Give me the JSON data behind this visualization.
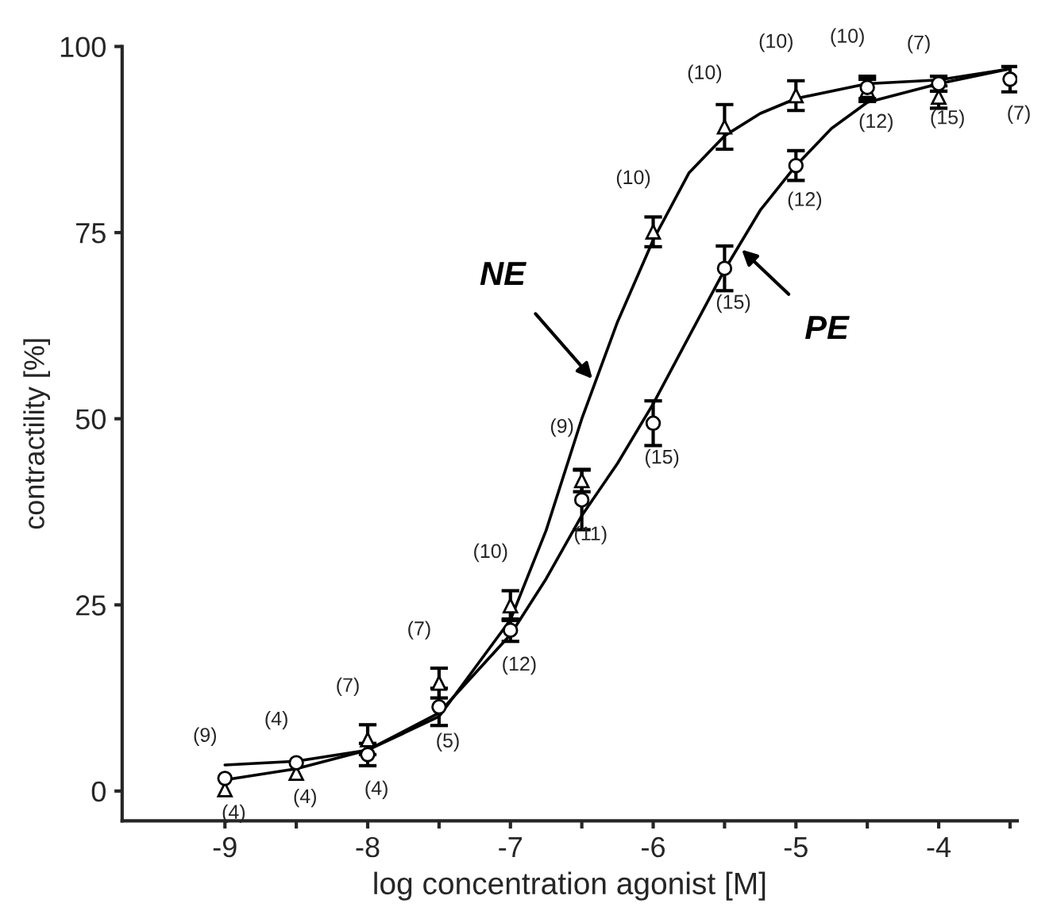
{
  "chart_data": {
    "type": "scatter",
    "xlabel": "log concentration agonist [M]",
    "ylabel": "contractility [%]",
    "xlim": [
      -9.72,
      -3.45
    ],
    "ylim": [
      -4,
      100
    ],
    "xticks": [
      -9,
      {
        "value": -8.5,
        "label": null
      },
      -8,
      {
        "value": -7.5,
        "label": null
      },
      -7,
      {
        "value": -6.5,
        "label": null
      },
      -6,
      {
        "value": -5.5,
        "label": null
      },
      -5,
      {
        "value": -4.5,
        "label": null
      },
      -4,
      {
        "value": -3.5,
        "label": null
      }
    ],
    "yticks": [
      0,
      25,
      50,
      75,
      100
    ],
    "grid": false,
    "legend": false,
    "series": [
      {
        "type": "line",
        "name": "NE",
        "color": "#000000",
        "x": [
          -9,
          -8.5,
          -8,
          -7.5,
          -7,
          -6.75,
          -6.5,
          -6.25,
          -6,
          -5.75,
          -5.5,
          -5.25,
          -5,
          -4.5,
          -4,
          -3.5
        ],
        "values": [
          3.5,
          4,
          5.5,
          10,
          23,
          35,
          50,
          63,
          74,
          83,
          88,
          91,
          93,
          95,
          95.5,
          97
        ]
      },
      {
        "type": "line",
        "name": "PE",
        "color": "#000000",
        "x": [
          -9,
          -8.5,
          -8,
          -7.5,
          -7,
          -6.75,
          -6.5,
          -6.25,
          -6,
          -5.75,
          -5.5,
          -5.25,
          -5,
          -4.75,
          -4.5,
          -4,
          -3.5
        ],
        "values": [
          1.5,
          3,
          5.5,
          10.5,
          21,
          28.5,
          37,
          44,
          52,
          61,
          70,
          78,
          84,
          89,
          92.5,
          95,
          97
        ]
      },
      {
        "marker": "triangle",
        "color": "#000000",
        "x": [
          -9,
          -8.5,
          -8,
          -7.5,
          -7,
          -6.5,
          -6,
          -5.5,
          -5,
          -4.5,
          -4
        ],
        "values": [
          0.2,
          2.4,
          6.9,
          14.5,
          24.9,
          41.7,
          75.1,
          89.2,
          93.4,
          94.1,
          93.2
        ],
        "errors": [
          null,
          null,
          2,
          2,
          2,
          1.5,
          2,
          3,
          2,
          1.5,
          1.5
        ]
      },
      {
        "marker": "circle",
        "color": "#000000",
        "x": [
          -9,
          -8.5,
          -8,
          -7.5,
          -7,
          -6.5,
          -6,
          -5.5,
          -5,
          -4.5,
          -4,
          -3.5
        ],
        "values": [
          1.7,
          3.8,
          4.9,
          11.3,
          21.6,
          39.1,
          49.4,
          70.2,
          84,
          94.5,
          95,
          95.6
        ],
        "errors": [
          null,
          null,
          1.5,
          2.5,
          1.5,
          4,
          3,
          3,
          2,
          1.5,
          1,
          1.7
        ]
      }
    ],
    "annotations": [
      {
        "text": "(9)",
        "x": -9,
        "y": 0.2
      },
      {
        "text": "(4)",
        "x": -8.5,
        "y": 2.4
      },
      {
        "text": "(7)",
        "x": -8,
        "y": 6.9
      },
      {
        "text": "(7)",
        "x": -7.5,
        "y": 14.5
      },
      {
        "text": "(10)",
        "x": -7,
        "y": 24.9
      },
      {
        "text": "(9)",
        "x": -6.5,
        "y": 41.7
      },
      {
        "text": "(10)",
        "x": -6,
        "y": 75.1
      },
      {
        "text": "(10)",
        "x": -5.5,
        "y": 89.2
      },
      {
        "text": "(10)",
        "x": -5,
        "y": 93.4
      },
      {
        "text": "(10)",
        "x": -4.5,
        "y": 94.1
      },
      {
        "text": "(7)",
        "x": -4,
        "y": 93.2
      },
      {
        "text": "(4)",
        "x": -9,
        "y": 1.7
      },
      {
        "text": "(4)",
        "x": -8.5,
        "y": 3.8
      },
      {
        "text": "(4)",
        "x": -8,
        "y": 4.9
      },
      {
        "text": "(5)",
        "x": -7.5,
        "y": 11.3
      },
      {
        "text": "(12)",
        "x": -7,
        "y": 21.6
      },
      {
        "text": "(11)",
        "x": -6.5,
        "y": 39.1
      },
      {
        "text": "(15)",
        "x": -6,
        "y": 49.4
      },
      {
        "text": "(15)",
        "x": -5.5,
        "y": 70.2
      },
      {
        "text": "(12)",
        "x": -5,
        "y": 84
      },
      {
        "text": "(12)",
        "x": -4.5,
        "y": 94.5
      },
      {
        "text": "(15)",
        "x": -4,
        "y": 95
      },
      {
        "text": "(7)",
        "x": -3.5,
        "y": 95.6
      }
    ]
  }
}
